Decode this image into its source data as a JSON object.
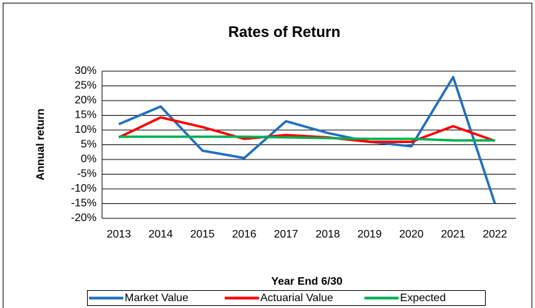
{
  "chart_data": {
    "type": "line",
    "title": "Rates of Return",
    "x_label": "Year End 6/30",
    "y_label": "Annual return",
    "categories": [
      "2013",
      "2014",
      "2015",
      "2016",
      "2017",
      "2018",
      "2019",
      "2020",
      "2021",
      "2022"
    ],
    "series": [
      {
        "name": "Market Value",
        "color": "#1f6fc0",
        "values": [
          12,
          18,
          3,
          0.5,
          13,
          9,
          6,
          4.5,
          28,
          -15
        ]
      },
      {
        "name": "Actuarial Value",
        "color": "#ff0000",
        "values": [
          7.5,
          14.3,
          11,
          7,
          8.3,
          7.5,
          6,
          6,
          11.3,
          6.3
        ]
      },
      {
        "name": "Expected",
        "color": "#00b050",
        "values": [
          7.75,
          7.75,
          7.75,
          7.75,
          7.5,
          7.25,
          7,
          7,
          6.5,
          6.5
        ]
      }
    ],
    "ylim": [
      -20,
      30
    ],
    "yticks": [
      {
        "value": -20,
        "label": "-20%"
      },
      {
        "value": -15,
        "label": "-15%"
      },
      {
        "value": -10,
        "label": "-10%"
      },
      {
        "value": -5,
        "label": "-5%"
      },
      {
        "value": 0,
        "label": "0%"
      },
      {
        "value": 5,
        "label": "5%"
      },
      {
        "value": 10,
        "label": "10%"
      },
      {
        "value": 15,
        "label": "15%"
      },
      {
        "value": 20,
        "label": "20%"
      },
      {
        "value": 25,
        "label": "25%"
      },
      {
        "value": 30,
        "label": "30%"
      }
    ],
    "grid": true,
    "legend": "bottom"
  }
}
